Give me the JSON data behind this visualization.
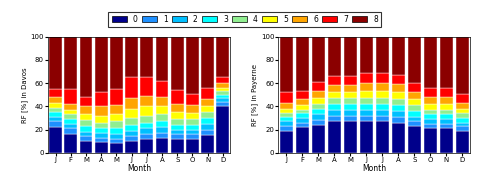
{
  "months": [
    "J",
    "F",
    "M",
    "A",
    "M",
    "J",
    "J",
    "A",
    "S",
    "O",
    "N",
    "D"
  ],
  "okta_colors": [
    "#00008B",
    "#1E90FF",
    "#00BFFF",
    "#00FFFF",
    "#90EE90",
    "#FFFF00",
    "#FFA500",
    "#FF0000",
    "#8B0000"
  ],
  "legend_labels": [
    "0",
    "1",
    "2",
    "3",
    "4",
    "5",
    "6",
    "7",
    "8"
  ],
  "davos": [
    [
      22,
      5,
      4,
      4,
      4,
      4,
      5,
      7,
      51
    ],
    [
      16,
      5,
      4,
      4,
      4,
      4,
      5,
      13,
      45
    ],
    [
      10,
      4,
      4,
      5,
      5,
      5,
      7,
      8,
      52
    ],
    [
      9,
      4,
      4,
      4,
      5,
      6,
      8,
      12,
      48
    ],
    [
      8,
      4,
      4,
      5,
      6,
      6,
      8,
      14,
      45
    ],
    [
      10,
      4,
      5,
      5,
      6,
      8,
      9,
      18,
      35
    ],
    [
      12,
      4,
      5,
      5,
      6,
      8,
      9,
      16,
      35
    ],
    [
      13,
      4,
      5,
      5,
      6,
      7,
      8,
      14,
      38
    ],
    [
      12,
      4,
      4,
      4,
      5,
      6,
      7,
      12,
      46
    ],
    [
      12,
      4,
      4,
      4,
      5,
      5,
      7,
      10,
      49
    ],
    [
      15,
      5,
      5,
      5,
      5,
      5,
      6,
      10,
      44
    ],
    [
      40,
      4,
      3,
      3,
      3,
      3,
      4,
      5,
      35
    ]
  ],
  "payerne": [
    [
      19,
      4,
      4,
      4,
      3,
      4,
      5,
      9,
      48
    ],
    [
      22,
      4,
      4,
      4,
      3,
      4,
      5,
      7,
      47
    ],
    [
      24,
      4,
      5,
      5,
      4,
      5,
      6,
      8,
      39
    ],
    [
      27,
      5,
      5,
      5,
      5,
      5,
      6,
      8,
      34
    ],
    [
      27,
      5,
      5,
      5,
      5,
      5,
      6,
      8,
      34
    ],
    [
      27,
      5,
      5,
      5,
      5,
      6,
      7,
      9,
      31
    ],
    [
      27,
      5,
      5,
      5,
      5,
      6,
      7,
      9,
      31
    ],
    [
      26,
      5,
      5,
      5,
      5,
      6,
      7,
      8,
      33
    ],
    [
      23,
      4,
      4,
      5,
      5,
      5,
      6,
      8,
      40
    ],
    [
      21,
      4,
      4,
      4,
      4,
      5,
      6,
      8,
      44
    ],
    [
      21,
      4,
      4,
      4,
      4,
      5,
      6,
      8,
      44
    ],
    [
      19,
      4,
      3,
      4,
      4,
      4,
      5,
      8,
      49
    ]
  ],
  "xlabel": "Month",
  "title_davos": "Davos",
  "title_payerne": "Payerne",
  "ylim": [
    0,
    100
  ],
  "yticks": [
    0,
    20,
    40,
    60,
    80,
    100
  ]
}
